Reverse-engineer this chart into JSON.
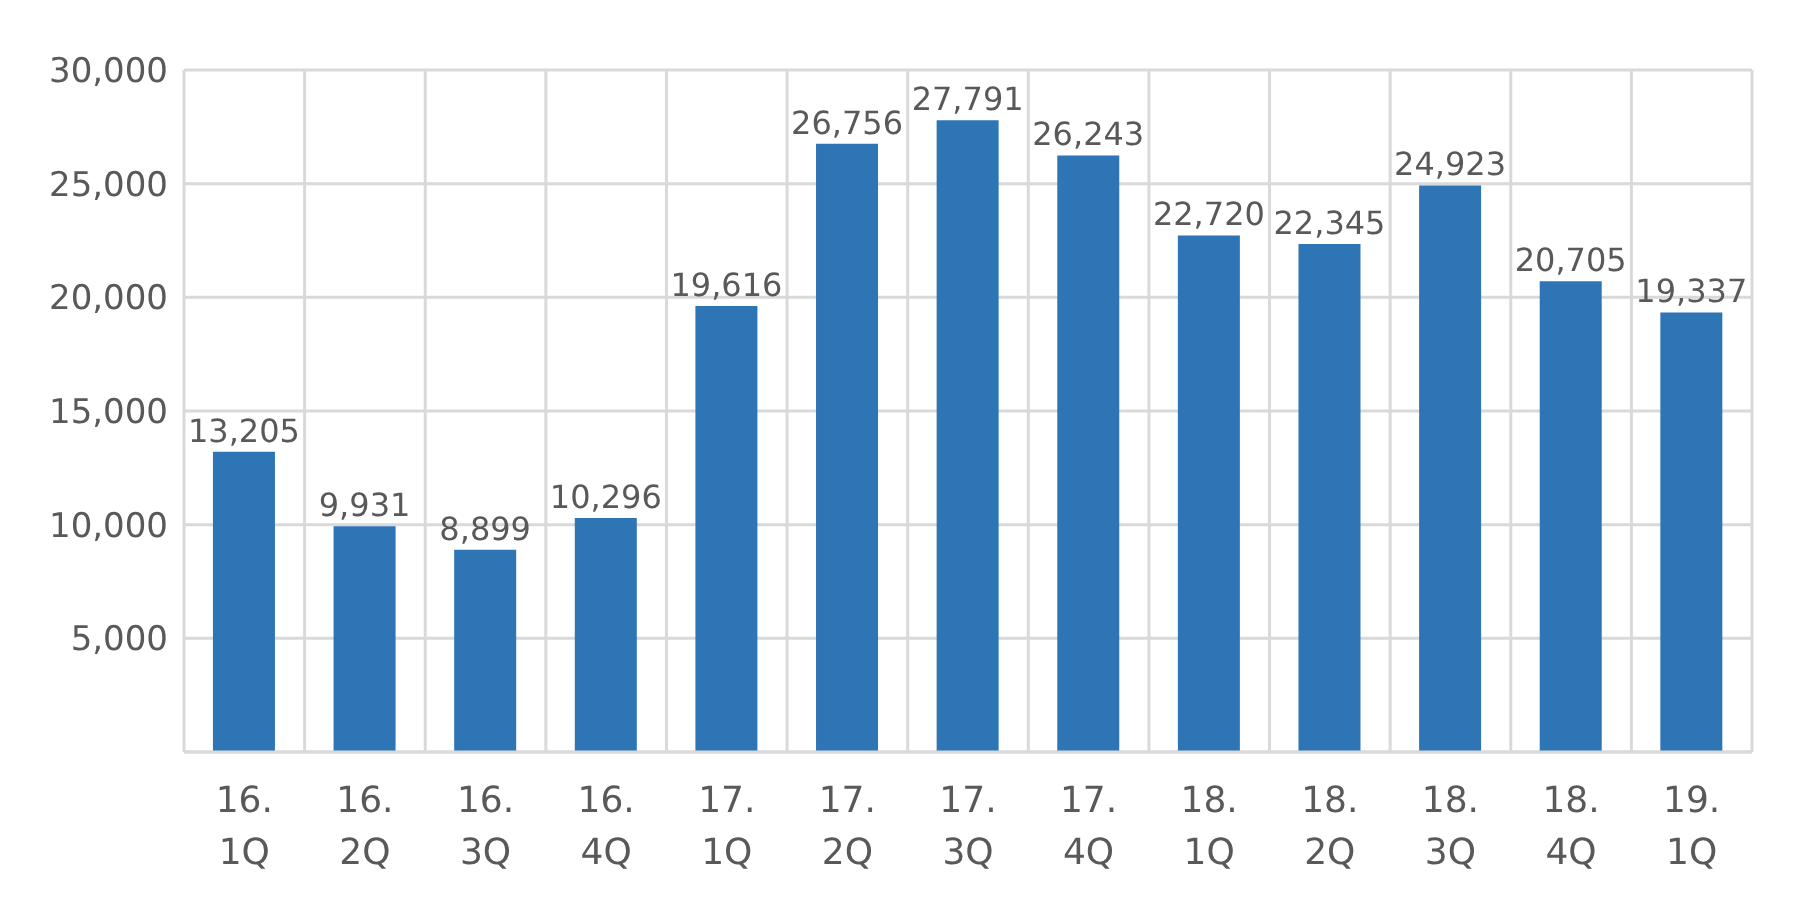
{
  "chart_data": {
    "type": "bar",
    "categories": [
      "16. 1Q",
      "16. 2Q",
      "16. 3Q",
      "16. 4Q",
      "17. 1Q",
      "17. 2Q",
      "17. 3Q",
      "17. 4Q",
      "18. 1Q",
      "18. 2Q",
      "18. 3Q",
      "18. 4Q",
      "19. 1Q"
    ],
    "values": [
      13205,
      9931,
      8899,
      10296,
      19616,
      26756,
      27791,
      26243,
      22720,
      22345,
      24923,
      20705,
      19337
    ],
    "value_labels": [
      "13,205",
      "9,931",
      "8,899",
      "10,296",
      "19,616",
      "26,756",
      "27,791",
      "26,243",
      "22,720",
      "22,345",
      "24,923",
      "20,705",
      "19,337"
    ],
    "color": "#2e75b6",
    "ylim": [
      0,
      30000
    ],
    "yticks": [
      {
        "value": 0,
        "label": null
      },
      {
        "value": 5000,
        "label": "5,000"
      },
      {
        "value": 10000,
        "label": "10,000"
      },
      {
        "value": 15000,
        "label": "15,000"
      },
      {
        "value": 20000,
        "label": "20,000"
      },
      {
        "value": 25000,
        "label": "25,000"
      },
      {
        "value": 30000,
        "label": "30,000"
      }
    ],
    "grid": true
  }
}
